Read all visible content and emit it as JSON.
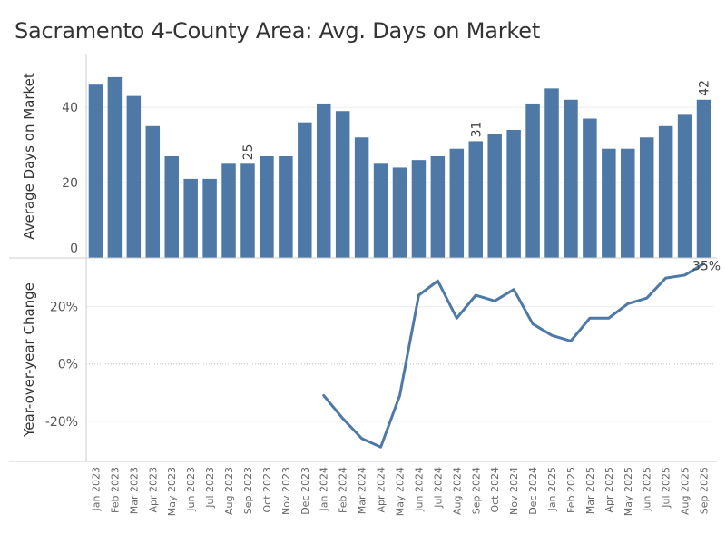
{
  "title": "Sacramento 4-County Area: Avg. Days on Market",
  "colors": {
    "series": "#4e79a7",
    "grid": "#ebebeb",
    "axis": "#cccccc",
    "zero_line": "#bfbfbf"
  },
  "chart_data": [
    {
      "type": "bar",
      "title": "Sacramento 4-County Area: Avg. Days on Market",
      "ylabel": "Average Days on Market",
      "xlabel": "",
      "ylim": [
        0,
        54
      ],
      "yticks": [
        0,
        20,
        40
      ],
      "grid": true,
      "categories": [
        "Jan 2023",
        "Feb 2023",
        "Mar 2023",
        "Apr 2023",
        "May 2023",
        "Jun 2023",
        "Jul 2023",
        "Aug 2023",
        "Sep 2023",
        "Oct 2023",
        "Nov 2023",
        "Dec 2023",
        "Jan 2024",
        "Feb 2024",
        "Mar 2024",
        "Apr 2024",
        "May 2024",
        "Jun 2024",
        "Jul 2024",
        "Aug 2024",
        "Sep 2024",
        "Oct 2024",
        "Nov 2024",
        "Dec 2024",
        "Jan 2025",
        "Feb 2025",
        "Mar 2025",
        "Apr 2025",
        "May 2025",
        "Jun 2025",
        "Jul 2025",
        "Aug 2025",
        "Sep 2025"
      ],
      "values": [
        46,
        48,
        43,
        35,
        27,
        21,
        21,
        25,
        25,
        27,
        27,
        36,
        41,
        39,
        32,
        25,
        24,
        26,
        27,
        29,
        31,
        33,
        34,
        41,
        45,
        42,
        37,
        29,
        29,
        32,
        35,
        38,
        42
      ],
      "data_labels": [
        {
          "category": "Sep 2023",
          "text": "25"
        },
        {
          "category": "Sep 2024",
          "text": "31"
        },
        {
          "category": "Sep 2025",
          "text": "42"
        }
      ]
    },
    {
      "type": "line",
      "ylabel": "Year-over-year Change",
      "xlabel": "",
      "ylim": [
        -34,
        37
      ],
      "yticks": [
        -20,
        0,
        20
      ],
      "ytick_labels": [
        "-20%",
        "0%",
        "20%"
      ],
      "grid": true,
      "categories": [
        "Jan 2023",
        "Feb 2023",
        "Mar 2023",
        "Apr 2023",
        "May 2023",
        "Jun 2023",
        "Jul 2023",
        "Aug 2023",
        "Sep 2023",
        "Oct 2023",
        "Nov 2023",
        "Dec 2023",
        "Jan 2024",
        "Feb 2024",
        "Mar 2024",
        "Apr 2024",
        "May 2024",
        "Jun 2024",
        "Jul 2024",
        "Aug 2024",
        "Sep 2024",
        "Oct 2024",
        "Nov 2024",
        "Dec 2024",
        "Jan 2025",
        "Feb 2025",
        "Mar 2025",
        "Apr 2025",
        "May 2025",
        "Jun 2025",
        "Jul 2025",
        "Aug 2025",
        "Sep 2025"
      ],
      "values": [
        null,
        null,
        null,
        null,
        null,
        null,
        null,
        null,
        null,
        null,
        null,
        null,
        -11,
        -19,
        -26,
        -29,
        -11,
        24,
        29,
        16,
        24,
        22,
        26,
        14,
        10,
        8,
        16,
        16,
        21,
        23,
        30,
        31,
        35
      ],
      "data_labels": [
        {
          "category": "Sep 2025",
          "text": "35%"
        }
      ]
    }
  ]
}
